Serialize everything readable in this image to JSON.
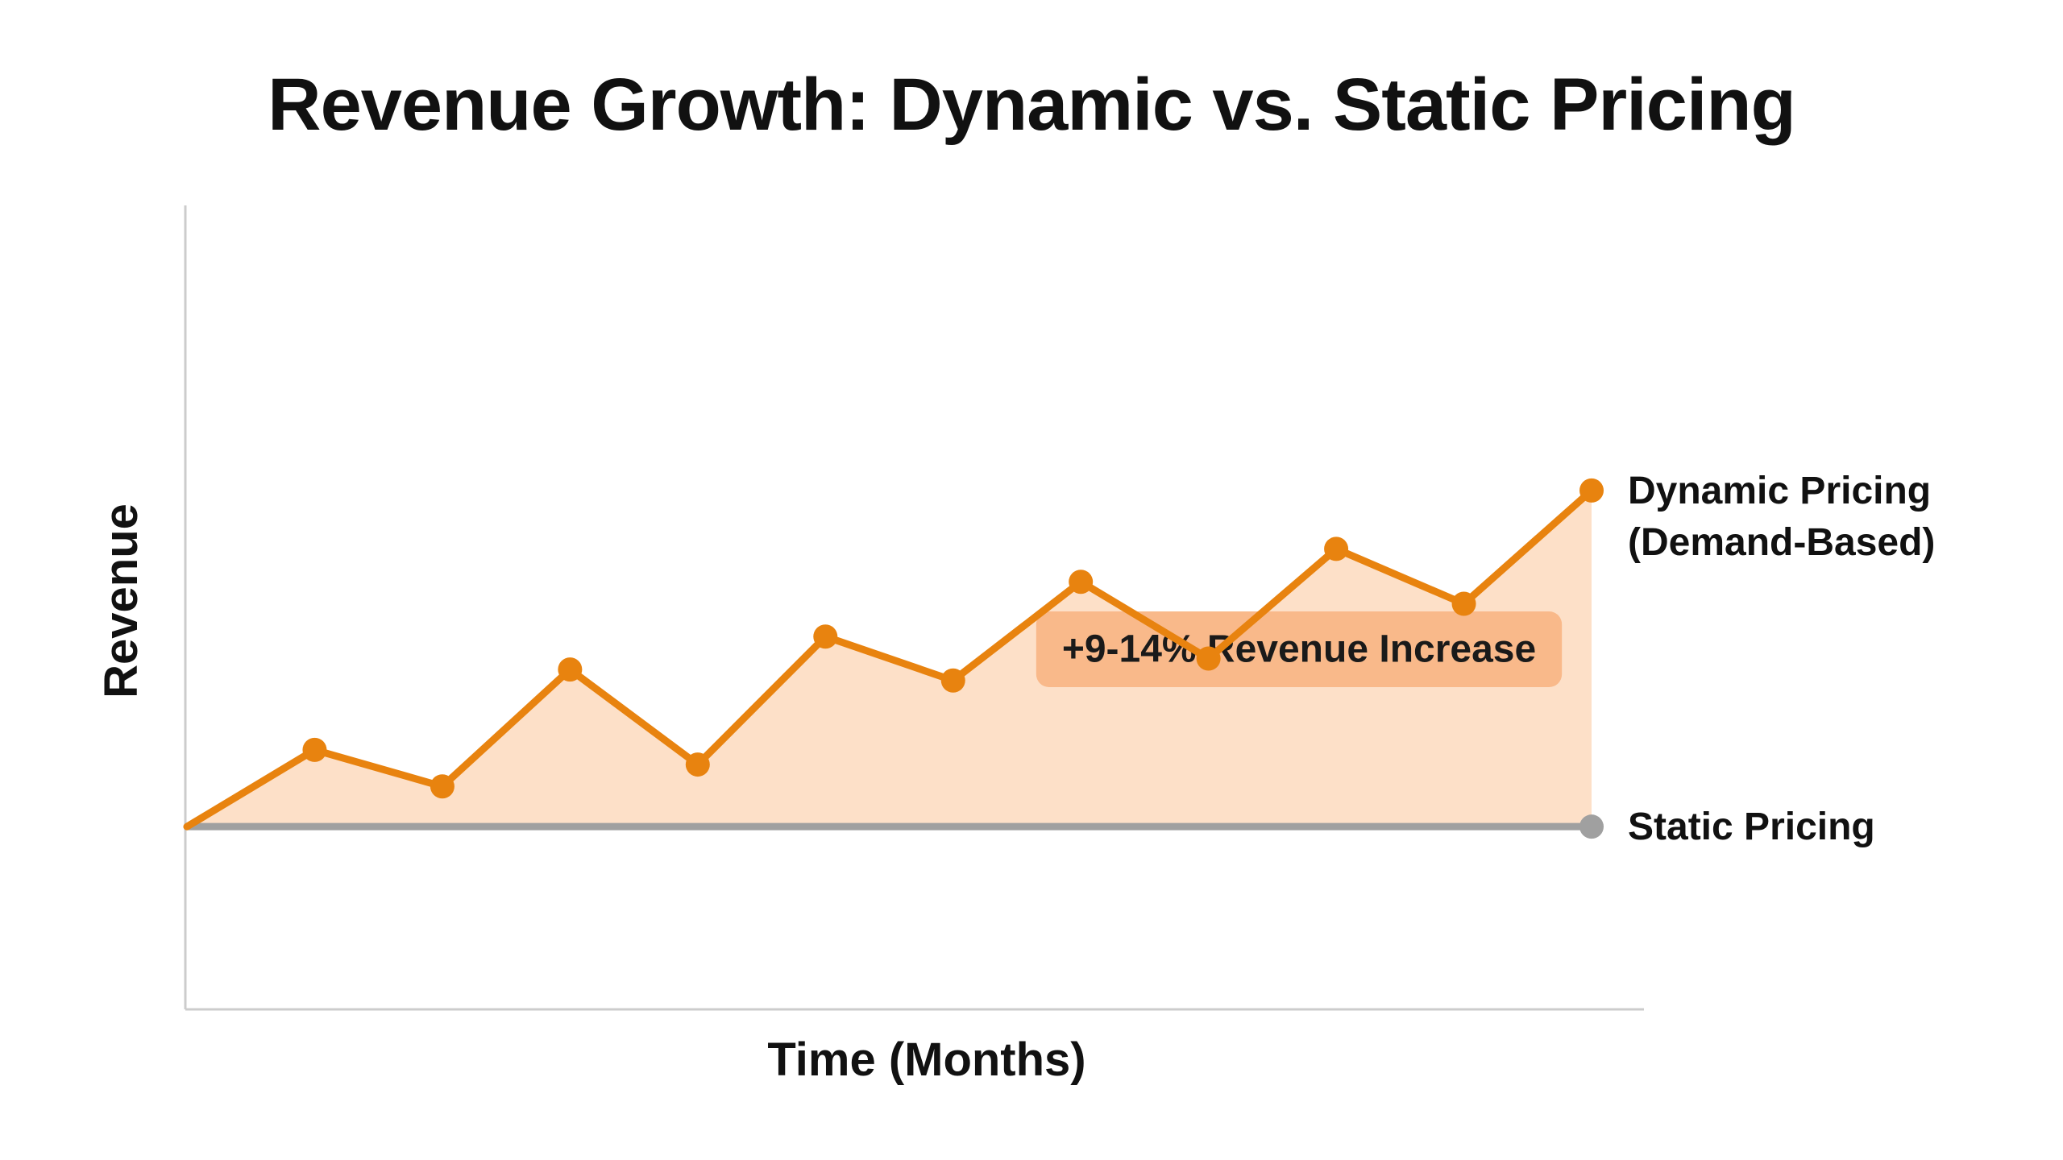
{
  "chart_data": {
    "type": "area",
    "title": "Revenue Growth: Dynamic vs. Static Pricing",
    "xlabel": "Time (Months)",
    "ylabel": "Revenue",
    "xlim": [
      0,
      11
    ],
    "ylim": [
      -5,
      17
    ],
    "grid": false,
    "x": [
      0,
      1,
      2,
      3,
      4,
      5,
      6,
      7,
      8,
      9,
      10,
      11
    ],
    "series": [
      {
        "name": "Dynamic Pricing (Demand-Based)",
        "label_lines": [
          "Dynamic Pricing",
          "(Demand-Based)"
        ],
        "color": "#e8830f",
        "fill": "#fde0c8",
        "values": [
          0,
          2.1,
          1.1,
          4.3,
          1.7,
          5.2,
          4.0,
          6.7,
          4.6,
          7.6,
          6.1,
          9.2
        ]
      },
      {
        "name": "Static Pricing",
        "label_lines": [
          "Static Pricing"
        ],
        "color": "#a0a0a0",
        "values": [
          0,
          0,
          0,
          0,
          0,
          0,
          0,
          0,
          0,
          0,
          0,
          0
        ]
      }
    ],
    "annotation": {
      "text": "+9-14% Revenue Increase",
      "box_color": "#f9b98a"
    },
    "axis_color": "#cccccc"
  }
}
